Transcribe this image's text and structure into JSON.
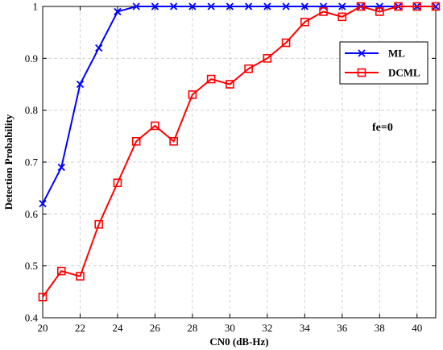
{
  "chart_data": {
    "type": "line",
    "xlabel": "CN0 (dB-Hz)",
    "ylabel": "Detection Probability",
    "xlim": [
      20,
      41
    ],
    "ylim": [
      0.4,
      1.0
    ],
    "x_ticks": [
      "20",
      "22",
      "24",
      "26",
      "28",
      "30",
      "32",
      "34",
      "36",
      "38",
      "40"
    ],
    "y_ticks": [
      "0.4",
      "0.5",
      "0.6",
      "0.7",
      "0.8",
      "0.9",
      "1"
    ],
    "grid": true,
    "legend_position": "top-right",
    "annotation": "fe=0",
    "series": [
      {
        "name": "ML",
        "color": "#0000ff",
        "marker": "x",
        "x": [
          20,
          21,
          22,
          23,
          24,
          25,
          26,
          27,
          28,
          29,
          30,
          31,
          32,
          33,
          34,
          35,
          36,
          37,
          38,
          39,
          40,
          41
        ],
        "y": [
          0.62,
          0.69,
          0.85,
          0.92,
          0.99,
          1.0,
          1.0,
          1.0,
          1.0,
          1.0,
          1.0,
          1.0,
          1.0,
          1.0,
          1.0,
          1.0,
          1.0,
          1.0,
          1.0,
          1.0,
          1.0,
          1.0
        ]
      },
      {
        "name": "DCML",
        "color": "#ff0000",
        "marker": "square",
        "x": [
          20,
          21,
          22,
          23,
          24,
          25,
          26,
          27,
          28,
          29,
          30,
          31,
          32,
          33,
          34,
          35,
          36,
          37,
          38,
          39,
          40,
          41
        ],
        "y": [
          0.44,
          0.49,
          0.48,
          0.58,
          0.66,
          0.74,
          0.77,
          0.74,
          0.83,
          0.86,
          0.85,
          0.88,
          0.9,
          0.93,
          0.97,
          0.99,
          0.98,
          1.0,
          0.99,
          1.0,
          1.0,
          1.0
        ]
      }
    ]
  }
}
